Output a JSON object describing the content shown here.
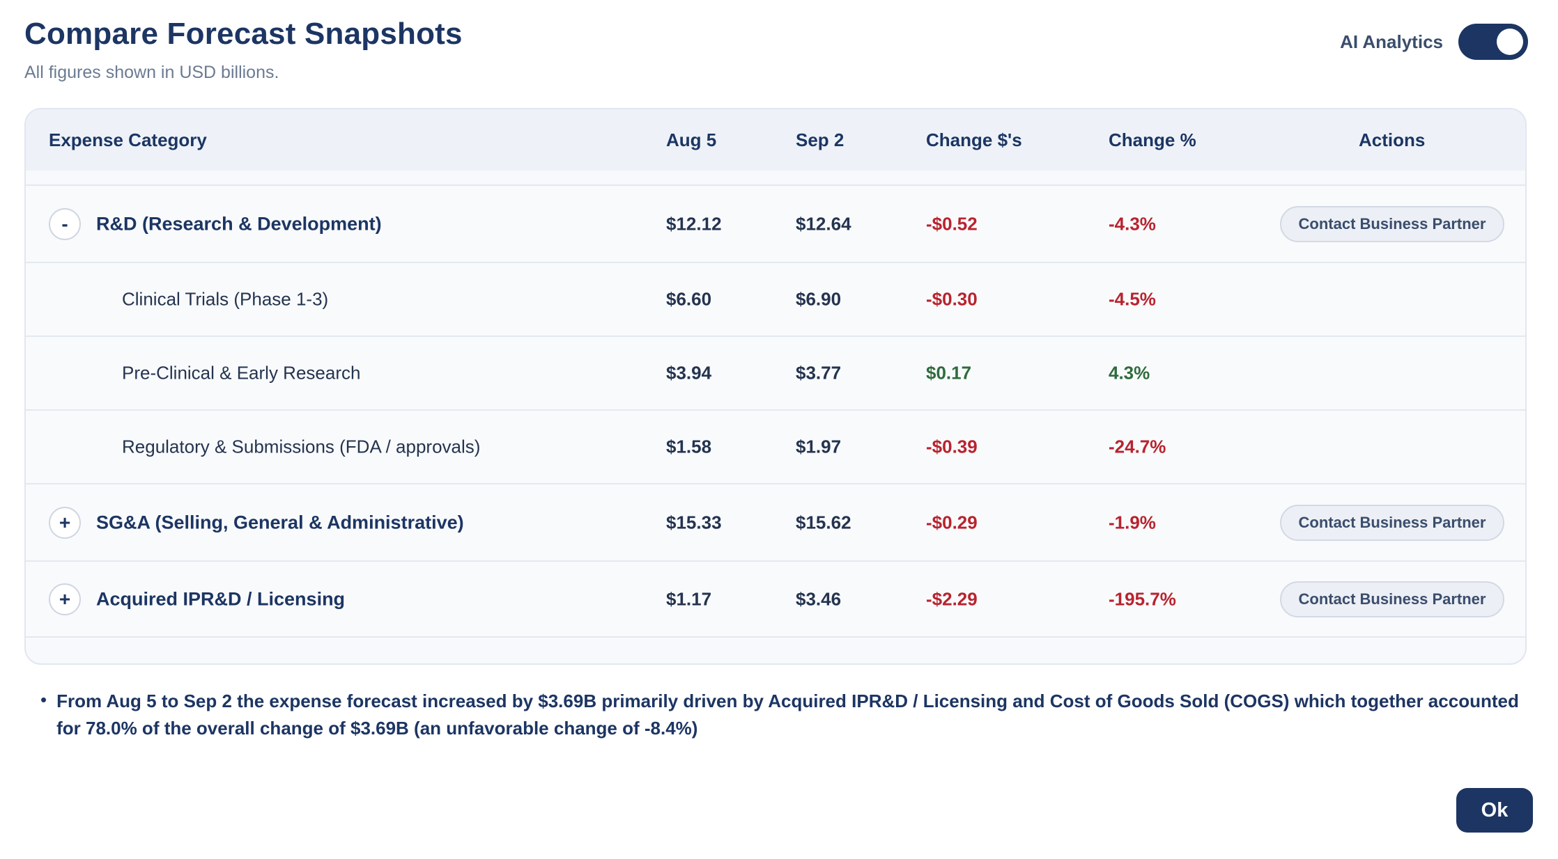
{
  "header": {
    "title": "Compare Forecast Snapshots",
    "subtitle": "All figures shown in USD billions.",
    "ai_label": "AI Analytics",
    "ai_enabled": true
  },
  "table": {
    "columns": {
      "category": "Expense Category",
      "aug": "Aug 5",
      "sep": "Sep 2",
      "change_dollars": "Change $'s",
      "change_pct": "Change %",
      "actions": "Actions"
    },
    "rows": [
      {
        "type": "parent",
        "expander": "-",
        "name": "R&D (Research & Development)",
        "aug": "$12.12",
        "sep": "$12.64",
        "chg": "-$0.52",
        "pct": "-4.3%",
        "tone": "neg",
        "action": "Contact Business Partner"
      },
      {
        "type": "child",
        "name": "Clinical Trials (Phase 1-3)",
        "aug": "$6.60",
        "sep": "$6.90",
        "chg": "-$0.30",
        "pct": "-4.5%",
        "tone": "neg"
      },
      {
        "type": "child",
        "name": "Pre-Clinical & Early Research",
        "aug": "$3.94",
        "sep": "$3.77",
        "chg": "$0.17",
        "pct": "4.3%",
        "tone": "pos"
      },
      {
        "type": "child",
        "name": "Regulatory & Submissions (FDA / approvals)",
        "aug": "$1.58",
        "sep": "$1.97",
        "chg": "-$0.39",
        "pct": "-24.7%",
        "tone": "neg"
      },
      {
        "type": "parent",
        "expander": "+",
        "name": "SG&A (Selling, General & Administrative)",
        "aug": "$15.33",
        "sep": "$15.62",
        "chg": "-$0.29",
        "pct": "-1.9%",
        "tone": "neg",
        "action": "Contact Business Partner"
      },
      {
        "type": "parent",
        "expander": "+",
        "name": "Acquired IPR&D / Licensing",
        "aug": "$1.17",
        "sep": "$3.46",
        "chg": "-$2.29",
        "pct": "-195.7%",
        "tone": "neg",
        "action": "Contact Business Partner"
      }
    ]
  },
  "summary": {
    "bullet": "•",
    "text": "From Aug 5 to Sep 2 the expense forecast increased by $3.69B primarily driven by Acquired IPR&D / Licensing and Cost of Goods Sold (COGS) which together accounted for 78.0% of the overall change of $3.69B (an unfavorable change of -8.4%)"
  },
  "footer": {
    "ok_label": "Ok"
  }
}
